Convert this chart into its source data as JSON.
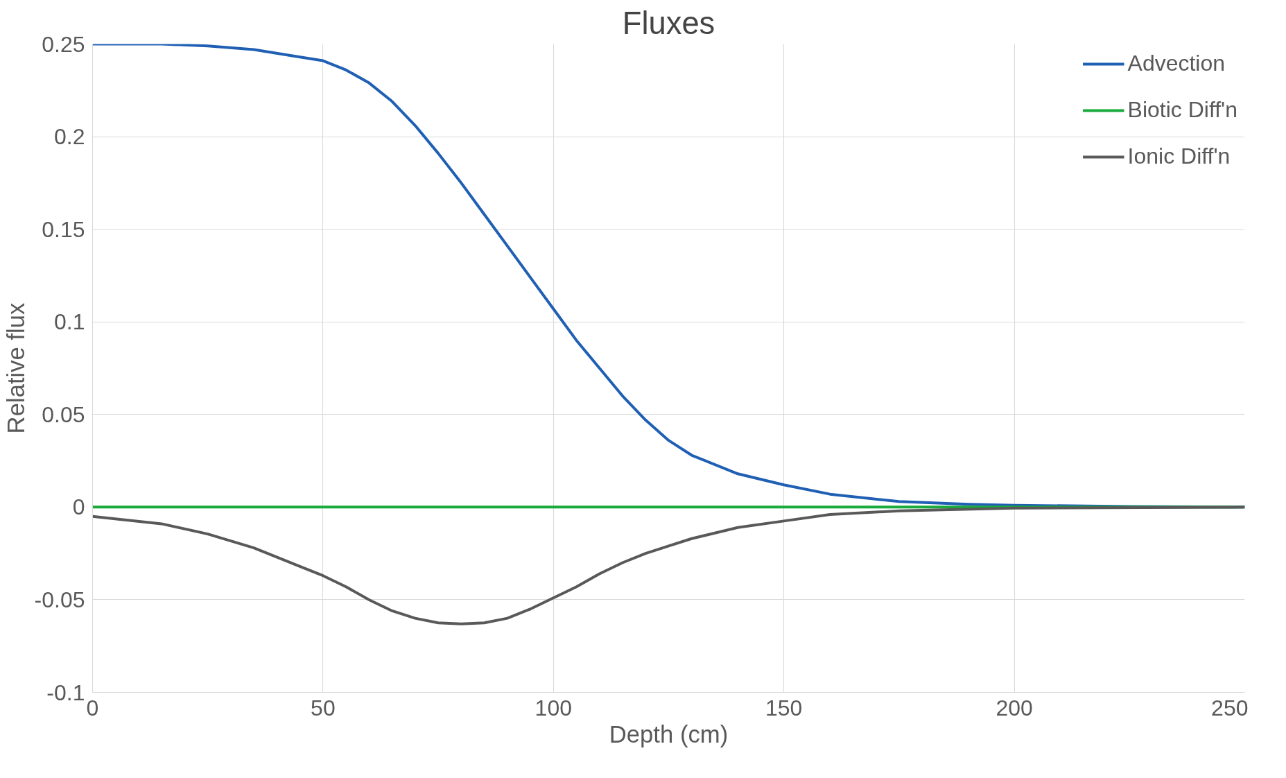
{
  "chart_data": {
    "type": "line",
    "title": "Fluxes",
    "xlabel": "Depth (cm)",
    "ylabel": "Relative flux",
    "xlim": [
      0,
      250
    ],
    "ylim": [
      -0.1,
      0.25
    ],
    "xticks": [
      0,
      50,
      100,
      150,
      200,
      250
    ],
    "yticks": [
      -0.1,
      -0.05,
      0,
      0.05,
      0.1,
      0.15,
      0.2,
      0.25
    ],
    "grid": true,
    "legend": "top right",
    "line_style": "solid",
    "series": [
      {
        "name": "Advection",
        "color": "#1f5fb4",
        "x": [
          0,
          15,
          25,
          35,
          45,
          50,
          55,
          60,
          65,
          70,
          75,
          80,
          85,
          90,
          95,
          100,
          105,
          110,
          115,
          120,
          125,
          130,
          140,
          150,
          160,
          175,
          190,
          200,
          225,
          250
        ],
        "values": [
          0.25,
          0.25,
          0.249,
          0.247,
          0.243,
          0.241,
          0.236,
          0.229,
          0.219,
          0.206,
          0.191,
          0.175,
          0.158,
          0.141,
          0.124,
          0.107,
          0.09,
          0.075,
          0.06,
          0.047,
          0.036,
          0.028,
          0.018,
          0.012,
          0.007,
          0.003,
          0.0015,
          0.001,
          0.0003,
          0
        ]
      },
      {
        "name": "Biotic Diff'n",
        "color": "#1aaa3c",
        "x": [
          0,
          250
        ],
        "values": [
          0,
          0
        ]
      },
      {
        "name": "Ionic Diff'n",
        "color": "#595959",
        "x": [
          0,
          15,
          25,
          35,
          45,
          50,
          55,
          60,
          65,
          70,
          75,
          80,
          85,
          90,
          95,
          100,
          105,
          110,
          115,
          120,
          125,
          130,
          140,
          150,
          160,
          175,
          200,
          250
        ],
        "values": [
          -0.005,
          -0.009,
          -0.0145,
          -0.022,
          -0.032,
          -0.037,
          -0.043,
          -0.05,
          -0.056,
          -0.06,
          -0.0625,
          -0.063,
          -0.0625,
          -0.06,
          -0.055,
          -0.049,
          -0.043,
          -0.036,
          -0.03,
          -0.025,
          -0.021,
          -0.017,
          -0.011,
          -0.0075,
          -0.004,
          -0.002,
          -0.0005,
          0
        ]
      }
    ]
  }
}
